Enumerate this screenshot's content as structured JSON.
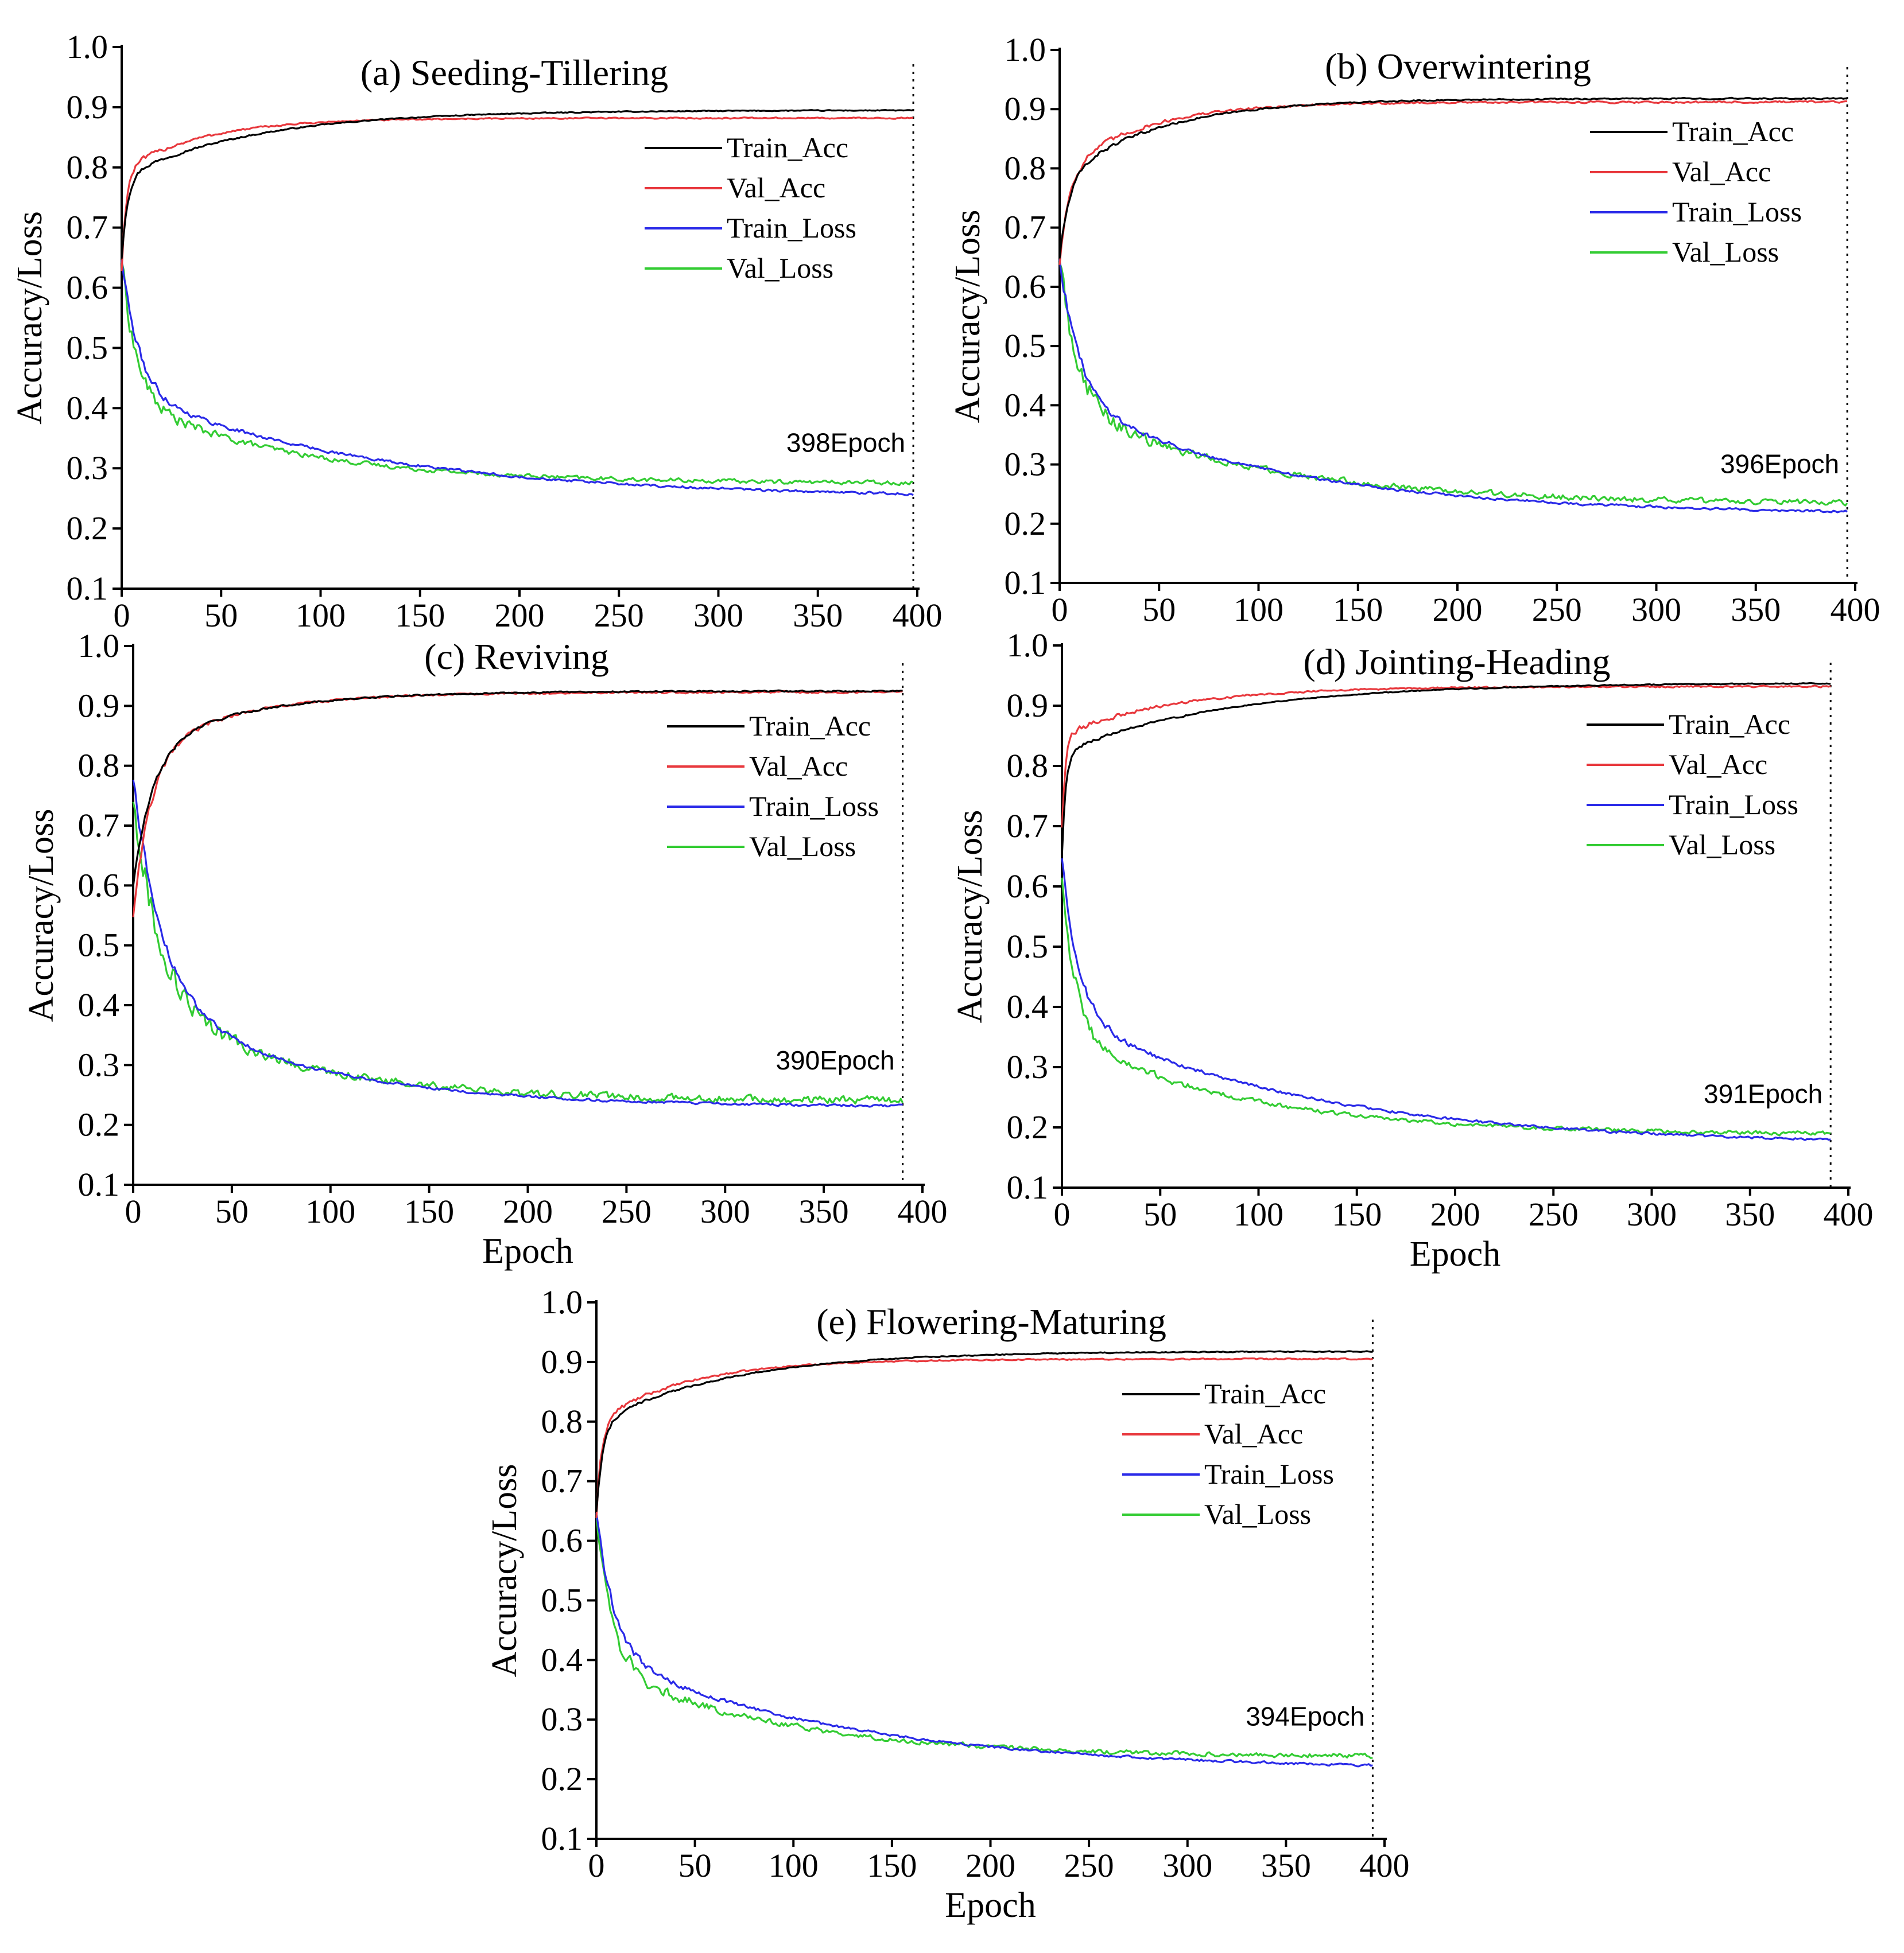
{
  "chart_data": [
    {
      "type": "line",
      "title": "(a) Seeding-Tillering",
      "xlabel": "",
      "ylabel": "Accuracy/Loss",
      "xlim": [
        0,
        400
      ],
      "ylim": [
        0.1,
        1.0
      ],
      "xticks": [
        "0",
        "50",
        "100",
        "150",
        "200",
        "250",
        "300",
        "350",
        "400"
      ],
      "yticks": [
        "0.1",
        "0.2",
        "0.3",
        "0.4",
        "0.5",
        "0.6",
        "0.7",
        "0.8",
        "0.9",
        "1.0"
      ],
      "grid": false,
      "legend_position": "top-right",
      "stop_epoch": 398,
      "stop_label": "398Epoch",
      "series": [
        {
          "name": "Train_Acc",
          "color": "#000000",
          "start": 0.65,
          "end": 0.895,
          "k1": 0.35,
          "w1": 0.55,
          "k2": 0.015,
          "noise": 0.0006
        },
        {
          "name": "Val_Acc",
          "color": "#e8383d",
          "start": 0.63,
          "end": 0.882,
          "k1": 0.45,
          "w1": 0.65,
          "k2": 0.025,
          "noise": 0.0008
        },
        {
          "name": "Train_Loss",
          "color": "#2a2ae8",
          "start": 0.65,
          "end": 0.25,
          "k1": 0.12,
          "w1": 0.55,
          "k2": 0.008,
          "noise": 0.0015
        },
        {
          "name": "Val_Loss",
          "color": "#33cc33",
          "start": 0.65,
          "end": 0.275,
          "k1": 0.14,
          "w1": 0.62,
          "k2": 0.012,
          "noise": 0.0025
        }
      ]
    },
    {
      "type": "line",
      "title": "(b) Overwintering",
      "xlabel": "",
      "ylabel": "Accuracy/Loss",
      "xlim": [
        0,
        400
      ],
      "ylim": [
        0.1,
        1.0
      ],
      "xticks": [
        "0",
        "50",
        "100",
        "150",
        "200",
        "250",
        "300",
        "350",
        "400"
      ],
      "yticks": [
        "0.1",
        "0.2",
        "0.3",
        "0.4",
        "0.5",
        "0.6",
        "0.7",
        "0.8",
        "0.9",
        "1.0"
      ],
      "grid": false,
      "legend_position": "top-right",
      "stop_epoch": 396,
      "stop_label": "396Epoch",
      "series": [
        {
          "name": "Train_Acc",
          "color": "#000000",
          "start": 0.65,
          "end": 0.918,
          "k1": 0.2,
          "w1": 0.5,
          "k2": 0.02,
          "noise": 0.0008
        },
        {
          "name": "Val_Acc",
          "color": "#e8383d",
          "start": 0.64,
          "end": 0.912,
          "k1": 0.22,
          "w1": 0.55,
          "k2": 0.025,
          "noise": 0.0012
        },
        {
          "name": "Train_Loss",
          "color": "#2a2ae8",
          "start": 0.65,
          "end": 0.215,
          "k1": 0.1,
          "w1": 0.55,
          "k2": 0.009,
          "noise": 0.0015
        },
        {
          "name": "Val_Loss",
          "color": "#33cc33",
          "start": 0.65,
          "end": 0.232,
          "k1": 0.11,
          "w1": 0.6,
          "k2": 0.01,
          "noise": 0.0035
        }
      ]
    },
    {
      "type": "line",
      "title": "(c) Reviving",
      "xlabel": "Epoch",
      "ylabel": "Accuracy/Loss",
      "xlim": [
        0,
        400
      ],
      "ylim": [
        0.1,
        1.0
      ],
      "xticks": [
        "0",
        "50",
        "100",
        "150",
        "200",
        "250",
        "300",
        "350",
        "400"
      ],
      "yticks": [
        "0.1",
        "0.2",
        "0.3",
        "0.4",
        "0.5",
        "0.6",
        "0.7",
        "0.8",
        "0.9",
        "1.0"
      ],
      "grid": false,
      "legend_position": "top-right",
      "stop_epoch": 390,
      "stop_label": "390Epoch",
      "series": [
        {
          "name": "Train_Acc",
          "color": "#000000",
          "start": 0.6,
          "end": 0.925,
          "k1": 0.1,
          "w1": 0.7,
          "k2": 0.018,
          "noise": 0.0008
        },
        {
          "name": "Val_Acc",
          "color": "#e8383d",
          "start": 0.55,
          "end": 0.923,
          "k1": 0.11,
          "w1": 0.72,
          "k2": 0.02,
          "noise": 0.0012
        },
        {
          "name": "Train_Loss",
          "color": "#2a2ae8",
          "start": 0.78,
          "end": 0.23,
          "k1": 0.07,
          "w1": 0.65,
          "k2": 0.012,
          "noise": 0.0015
        },
        {
          "name": "Val_Loss",
          "color": "#33cc33",
          "start": 0.75,
          "end": 0.24,
          "k1": 0.075,
          "w1": 0.65,
          "k2": 0.013,
          "noise": 0.0045
        }
      ]
    },
    {
      "type": "line",
      "title": "(d) Jointing-Heading",
      "xlabel": "Epoch",
      "ylabel": "Accuracy/Loss",
      "xlim": [
        0,
        400
      ],
      "ylim": [
        0.1,
        1.0
      ],
      "xticks": [
        "0",
        "50",
        "100",
        "150",
        "200",
        "250",
        "300",
        "350",
        "400"
      ],
      "yticks": [
        "0.1",
        "0.2",
        "0.3",
        "0.4",
        "0.5",
        "0.6",
        "0.7",
        "0.8",
        "0.9",
        "1.0"
      ],
      "grid": false,
      "legend_position": "top-right",
      "stop_epoch": 391,
      "stop_label": "391Epoch",
      "series": [
        {
          "name": "Train_Acc",
          "color": "#000000",
          "start": 0.65,
          "end": 0.938,
          "k1": 0.5,
          "w1": 0.6,
          "k2": 0.012,
          "noise": 0.0006
        },
        {
          "name": "Val_Acc",
          "color": "#e8383d",
          "start": 0.7,
          "end": 0.932,
          "k1": 0.55,
          "w1": 0.65,
          "k2": 0.018,
          "noise": 0.001
        },
        {
          "name": "Train_Loss",
          "color": "#2a2ae8",
          "start": 0.65,
          "end": 0.17,
          "k1": 0.12,
          "w1": 0.55,
          "k2": 0.008,
          "noise": 0.0015
        },
        {
          "name": "Val_Loss",
          "color": "#33cc33",
          "start": 0.62,
          "end": 0.188,
          "k1": 0.14,
          "w1": 0.62,
          "k2": 0.011,
          "noise": 0.0025
        }
      ]
    },
    {
      "type": "line",
      "title": "(e) Flowering-Maturing",
      "xlabel": "Epoch",
      "ylabel": "Accuracy/Loss",
      "xlim": [
        0,
        400
      ],
      "ylim": [
        0.1,
        1.0
      ],
      "xticks": [
        "0",
        "50",
        "100",
        "150",
        "200",
        "250",
        "300",
        "350",
        "400"
      ],
      "yticks": [
        "0.1",
        "0.2",
        "0.3",
        "0.4",
        "0.5",
        "0.6",
        "0.7",
        "0.8",
        "0.9",
        "1.0"
      ],
      "grid": false,
      "legend_position": "top-right",
      "stop_epoch": 394,
      "stop_label": "394Epoch",
      "series": [
        {
          "name": "Train_Acc",
          "color": "#000000",
          "start": 0.65,
          "end": 0.918,
          "k1": 0.3,
          "w1": 0.55,
          "k2": 0.015,
          "noise": 0.0006
        },
        {
          "name": "Val_Acc",
          "color": "#e8383d",
          "start": 0.64,
          "end": 0.905,
          "k1": 0.38,
          "w1": 0.6,
          "k2": 0.022,
          "noise": 0.0008
        },
        {
          "name": "Train_Loss",
          "color": "#2a2ae8",
          "start": 0.65,
          "end": 0.215,
          "k1": 0.11,
          "w1": 0.55,
          "k2": 0.008,
          "noise": 0.0015
        },
        {
          "name": "Val_Loss",
          "color": "#33cc33",
          "start": 0.65,
          "end": 0.237,
          "k1": 0.13,
          "w1": 0.62,
          "k2": 0.011,
          "noise": 0.0028
        }
      ]
    }
  ]
}
